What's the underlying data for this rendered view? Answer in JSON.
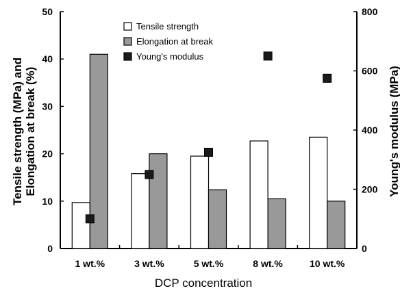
{
  "chart_data": {
    "type": "bar",
    "title": "",
    "categories": [
      "1 wt.%",
      "3 wt.%",
      "5 wt.%",
      "8 wt.%",
      "10 wt.%"
    ],
    "xlabel": "DCP concentration",
    "ylabel_left": [
      "Tensile strength (MPa) and",
      "Elongation at break (%)"
    ],
    "ylabel_right": "Young's modulus (MPa)",
    "ylim_left": [
      0,
      50
    ],
    "ylim_right": [
      0,
      800
    ],
    "yticks_left": [
      "0",
      "10",
      "20",
      "30",
      "40",
      "50"
    ],
    "yticks_right": [
      "0",
      "200",
      "400",
      "600",
      "800"
    ],
    "grid": false,
    "legend_position": "top-center",
    "series": [
      {
        "name": "Tensile strength",
        "axis": "left",
        "kind": "bar",
        "color": "#ffffff",
        "values": [
          9.7,
          15.8,
          19.5,
          22.7,
          23.5
        ]
      },
      {
        "name": "Elongation at break",
        "axis": "left",
        "kind": "bar",
        "color": "#999999",
        "values": [
          41.0,
          20.0,
          12.4,
          10.5,
          10.0
        ]
      },
      {
        "name": "Young's modulus",
        "axis": "right",
        "kind": "scatter",
        "color": "#1a1a1a",
        "values": [
          100,
          250,
          325,
          650,
          575
        ]
      }
    ]
  }
}
